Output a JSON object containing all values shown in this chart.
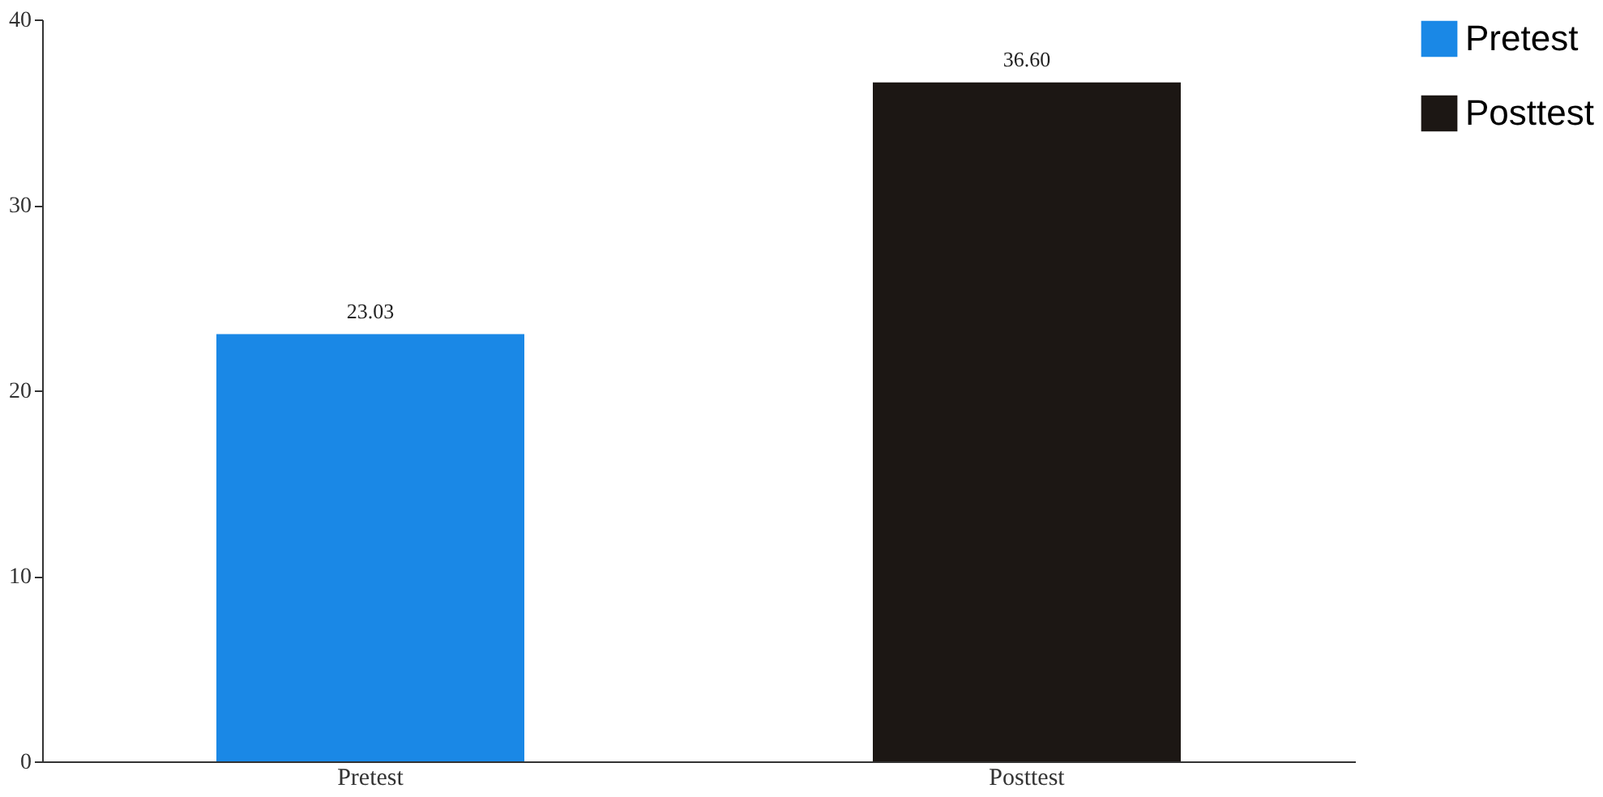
{
  "chart_data": {
    "type": "bar",
    "categories": [
      "Pretest",
      "Posttest"
    ],
    "stacked": true,
    "series": [
      {
        "name": "Pretest",
        "color": "#1a88e6",
        "values": [
          23.03,
          null
        ],
        "value_labels": [
          "23.03",
          null
        ]
      },
      {
        "name": "Posttest",
        "color": "#1c1714",
        "values": [
          null,
          36.6
        ],
        "value_labels": [
          null,
          "36.60"
        ]
      }
    ],
    "ylim": [
      0,
      40
    ],
    "yticks": [
      0,
      10,
      20,
      30,
      40
    ],
    "grid": false,
    "legend": "right"
  }
}
